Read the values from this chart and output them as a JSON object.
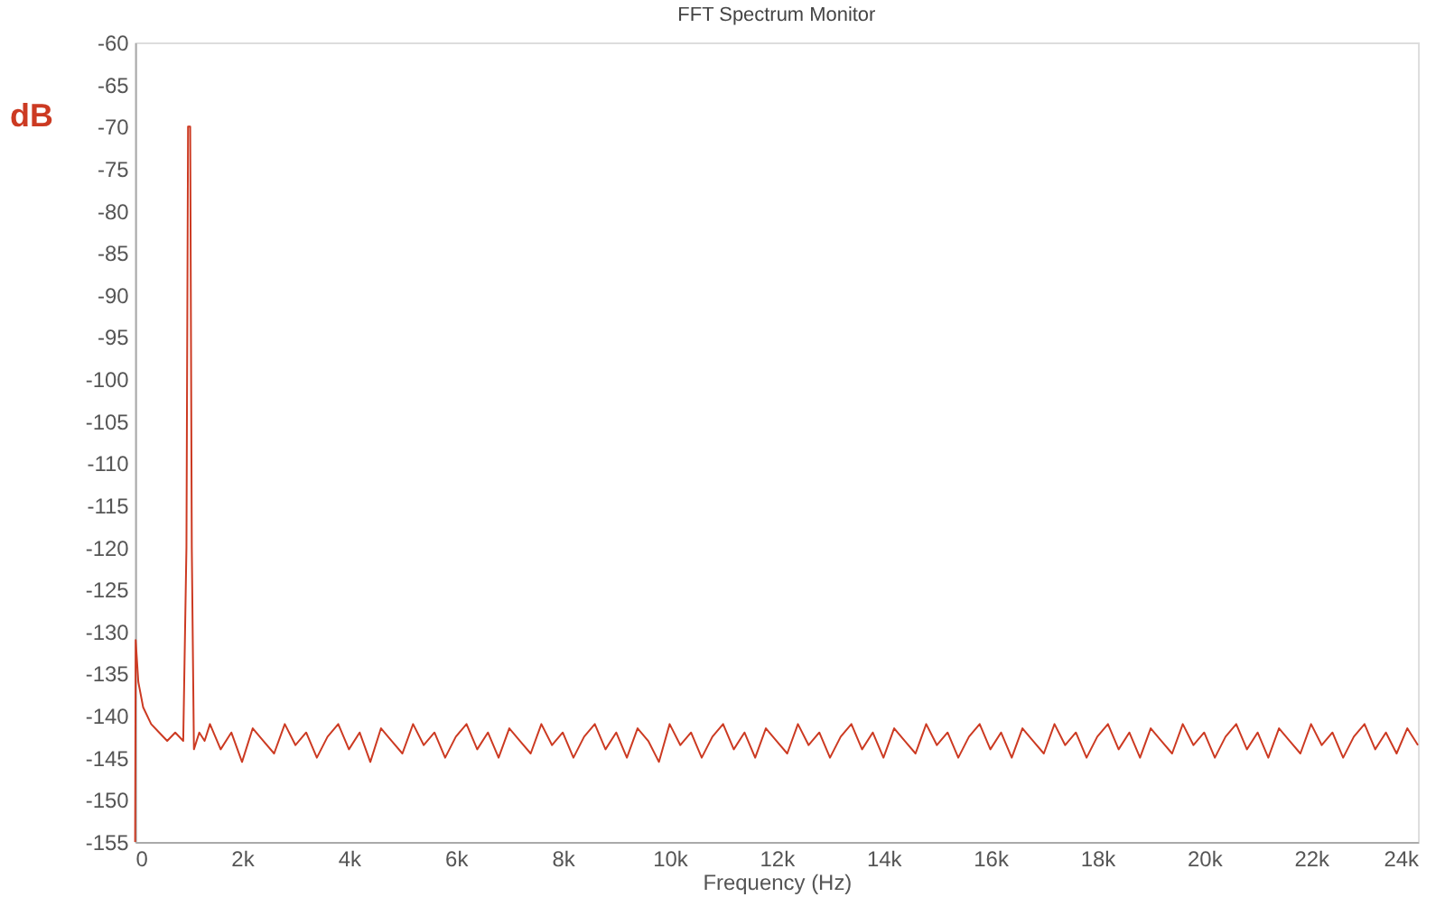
{
  "chart_data": {
    "type": "line",
    "title": "FFT Spectrum Monitor",
    "xlabel": "Frequency (Hz)",
    "ylabel": "dB",
    "xlim": [
      0,
      24000
    ],
    "ylim": [
      -155,
      -60
    ],
    "xticks": [
      0,
      {
        "value": 2000,
        "label": "2k"
      },
      {
        "value": 4000,
        "label": "4k"
      },
      {
        "value": 6000,
        "label": "6k"
      },
      {
        "value": 8000,
        "label": "8k"
      },
      {
        "value": 10000,
        "label": "10k"
      },
      {
        "value": 12000,
        "label": "12k"
      },
      {
        "value": 14000,
        "label": "14k"
      },
      {
        "value": 16000,
        "label": "16k"
      },
      {
        "value": 18000,
        "label": "18k"
      },
      {
        "value": 20000,
        "label": "20k"
      },
      {
        "value": 22000,
        "label": "22k"
      },
      {
        "value": 24000,
        "label": "24k"
      }
    ],
    "yticks": [
      -60,
      -65,
      -70,
      -75,
      -80,
      -85,
      -90,
      -95,
      -100,
      -105,
      -110,
      -115,
      -120,
      -125,
      -130,
      -135,
      -140,
      -145,
      -150,
      -155
    ],
    "grid": false,
    "marker": "none",
    "line_style": "solid",
    "series": [
      {
        "color": "#cc3a22",
        "x": [
          0,
          10,
          60,
          150,
          300,
          450,
          600,
          750,
          900,
          960,
          990,
          1030,
          1060,
          1100,
          1200,
          1300,
          1400,
          1600,
          1800,
          2000,
          2200,
          2400,
          2600,
          2800,
          3000,
          3200,
          3400,
          3600,
          3800,
          4000,
          4200,
          4400,
          4600,
          4800,
          5000,
          5200,
          5400,
          5600,
          5800,
          6000,
          6200,
          6400,
          6600,
          6800,
          7000,
          7200,
          7400,
          7600,
          7800,
          8000,
          8200,
          8400,
          8600,
          8800,
          9000,
          9200,
          9400,
          9600,
          9800,
          10000,
          10200,
          10400,
          10600,
          10800,
          11000,
          11200,
          11400,
          11600,
          11800,
          12000,
          12200,
          12400,
          12600,
          12800,
          13000,
          13200,
          13400,
          13600,
          13800,
          14000,
          14200,
          14400,
          14600,
          14800,
          15000,
          15200,
          15400,
          15600,
          15800,
          16000,
          16200,
          16400,
          16600,
          16800,
          17000,
          17200,
          17400,
          17600,
          17800,
          18000,
          18200,
          18400,
          18600,
          18800,
          19000,
          19200,
          19400,
          19600,
          19800,
          20000,
          20200,
          20400,
          20600,
          20800,
          21000,
          21200,
          21400,
          21600,
          21800,
          22000,
          22200,
          22400,
          22600,
          22800,
          23000,
          23200,
          23400,
          23600,
          23800,
          24000
        ],
        "values": [
          -155,
          -131,
          -136,
          -139,
          -141,
          -142,
          -143,
          -142,
          -143,
          -120,
          -70,
          -70,
          -120,
          -144,
          -142,
          -143,
          -141,
          -144,
          -142,
          -145.5,
          -141.5,
          -143,
          -144.5,
          -141,
          -143.5,
          -142,
          -145,
          -142.5,
          -141,
          -144,
          -142,
          -145.5,
          -141.5,
          -143,
          -144.5,
          -141,
          -143.5,
          -142,
          -145,
          -142.5,
          -141,
          -144,
          -142,
          -145,
          -141.5,
          -143,
          -144.5,
          -141,
          -143.5,
          -142,
          -145,
          -142.5,
          -141,
          -144,
          -142,
          -145,
          -141.5,
          -143,
          -145.5,
          -141,
          -143.5,
          -142,
          -145,
          -142.5,
          -141,
          -144,
          -142,
          -145,
          -141.5,
          -143,
          -144.5,
          -141,
          -143.5,
          -142,
          -145,
          -142.5,
          -141,
          -144,
          -142,
          -145,
          -141.5,
          -143,
          -144.5,
          -141,
          -143.5,
          -142,
          -145,
          -142.5,
          -141,
          -144,
          -142,
          -145,
          -141.5,
          -143,
          -144.5,
          -141,
          -143.5,
          -142,
          -145,
          -142.5,
          -141,
          -144,
          -142,
          -145,
          -141.5,
          -143,
          -144.5,
          -141,
          -143.5,
          -142,
          -145,
          -142.5,
          -141,
          -144,
          -142,
          -145,
          -141.5,
          -143,
          -144.5,
          -141,
          -143.5,
          -142,
          -145,
          -142.5,
          -141,
          -144,
          -142,
          -144.5,
          -141.5,
          -143.5
        ]
      }
    ]
  }
}
